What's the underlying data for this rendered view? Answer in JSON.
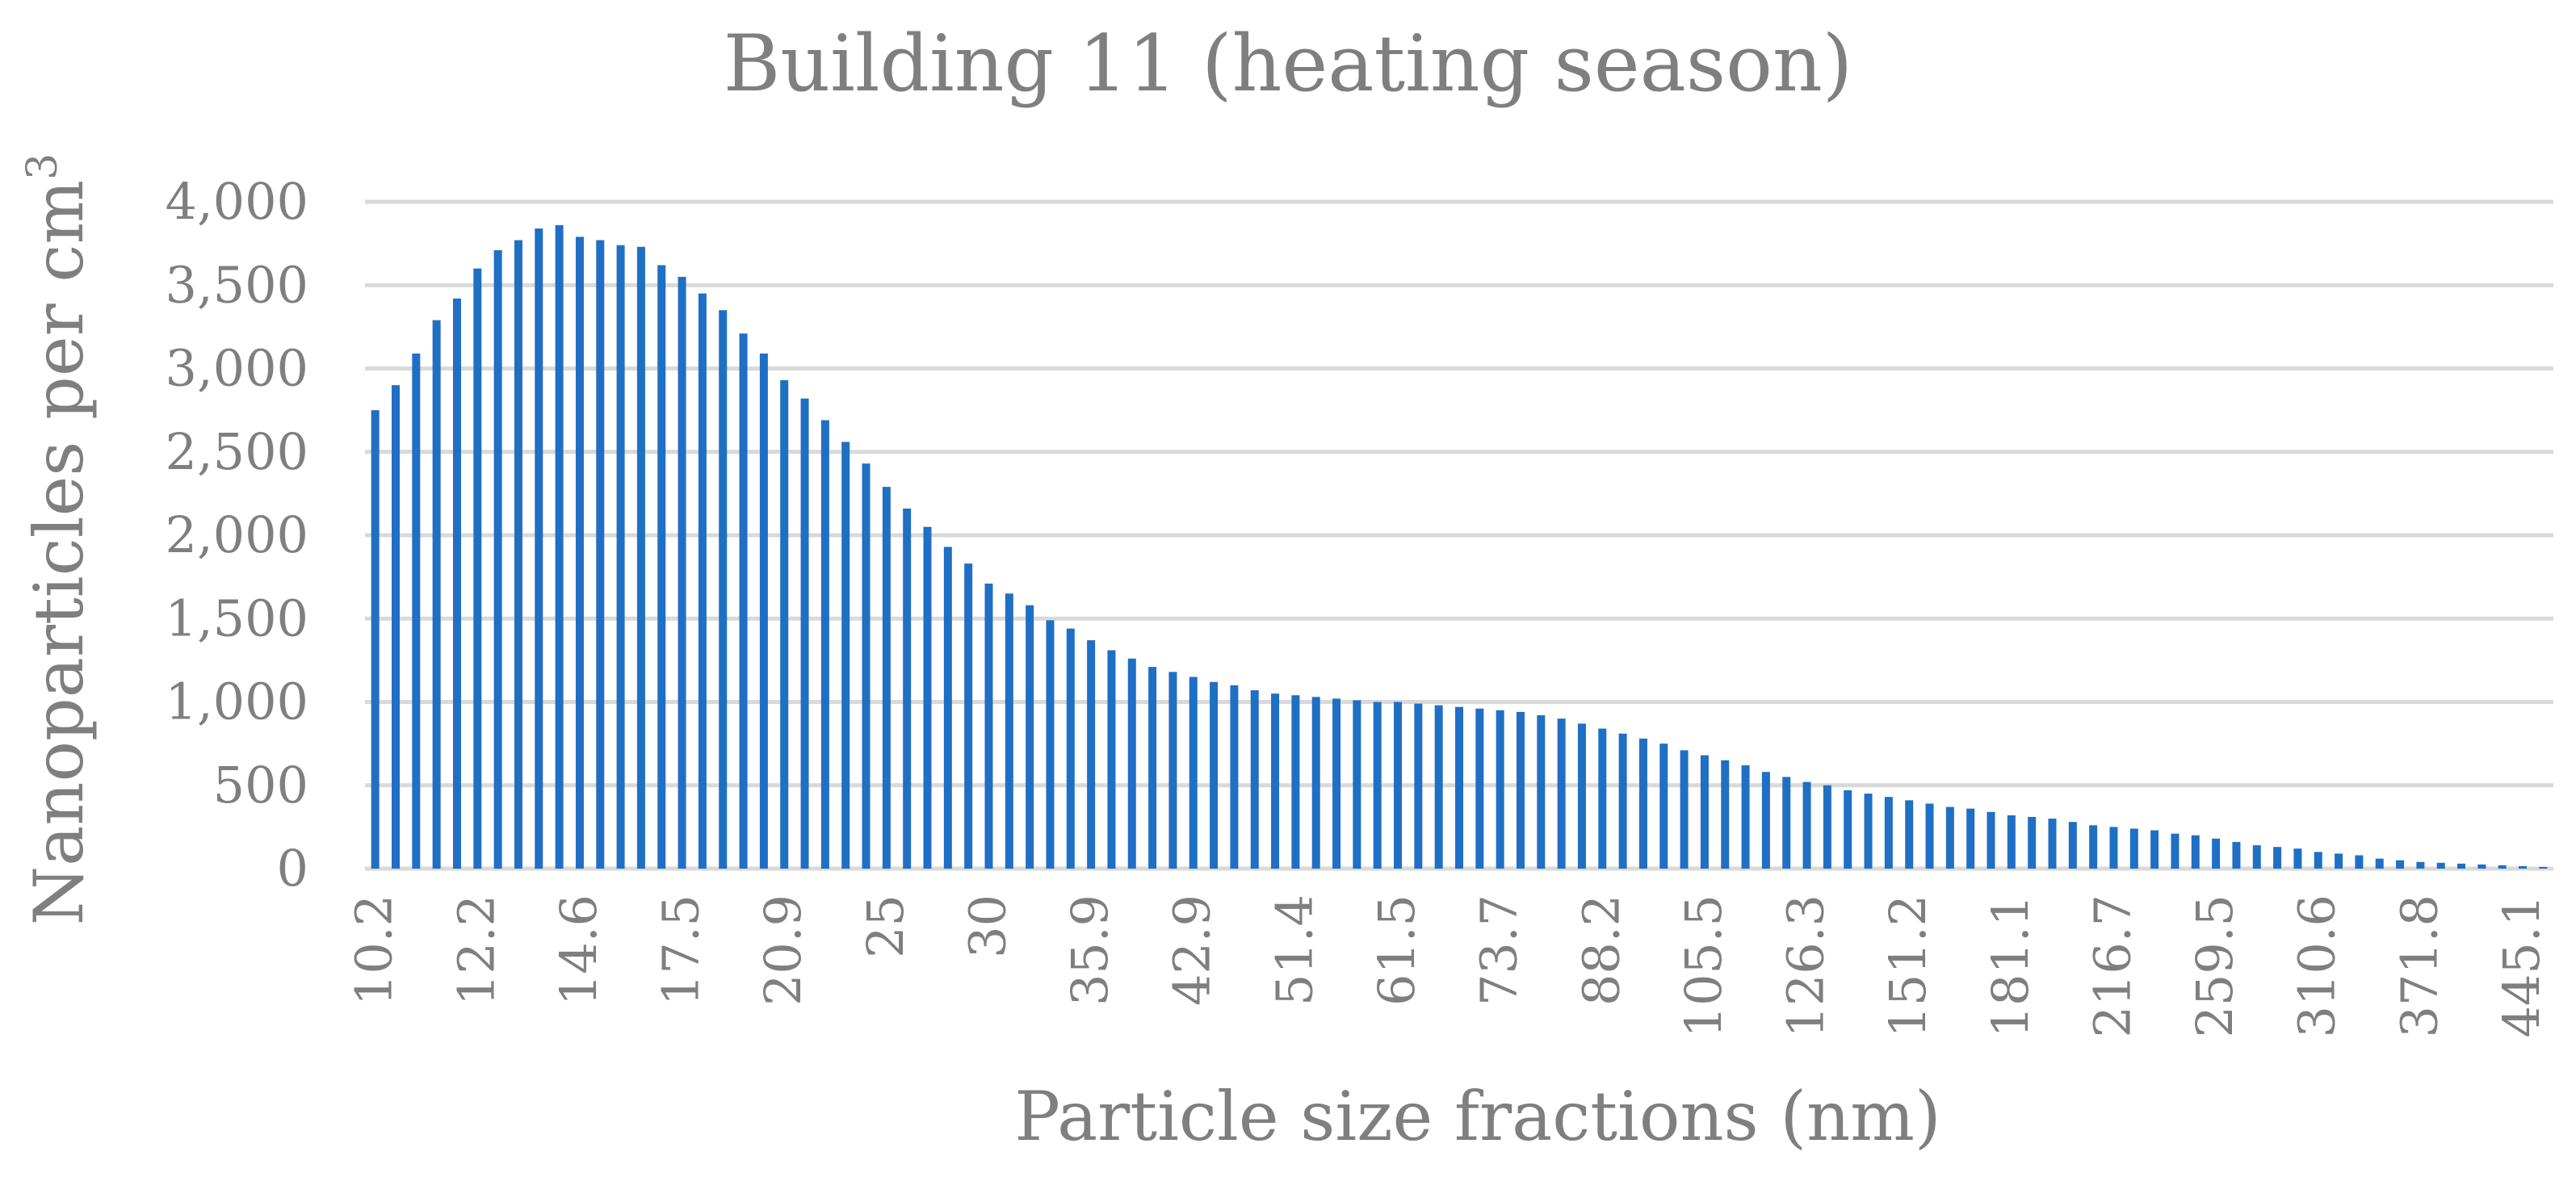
{
  "chart_data": {
    "type": "bar",
    "title": "Building 11 (heating season)",
    "xlabel": "Particle size fractions (nm)",
    "ylabel": "Nanoparticles per cm",
    "ylabel_superscript": "3",
    "ylim": [
      0,
      4000
    ],
    "y_ticks": [
      0,
      500,
      1000,
      1500,
      2000,
      2500,
      3000,
      3500,
      4000
    ],
    "y_tick_labels": [
      "0",
      "500",
      "1,000",
      "1,500",
      "2,000",
      "2,500",
      "3,000",
      "3,500",
      "4,000"
    ],
    "x_tick_labels": [
      {
        "index": 0,
        "label": "10.2"
      },
      {
        "index": 5,
        "label": "12.2"
      },
      {
        "index": 10,
        "label": "14.6"
      },
      {
        "index": 15,
        "label": "17.5"
      },
      {
        "index": 20,
        "label": "20.9"
      },
      {
        "index": 25,
        "label": "25"
      },
      {
        "index": 30,
        "label": "30"
      },
      {
        "index": 35,
        "label": "35.9"
      },
      {
        "index": 40,
        "label": "42.9"
      },
      {
        "index": 45,
        "label": "51.4"
      },
      {
        "index": 50,
        "label": "61.5"
      },
      {
        "index": 55,
        "label": "73.7"
      },
      {
        "index": 60,
        "label": "88.2"
      },
      {
        "index": 65,
        "label": "105.5"
      },
      {
        "index": 70,
        "label": "126.3"
      },
      {
        "index": 75,
        "label": "151.2"
      },
      {
        "index": 80,
        "label": "181.1"
      },
      {
        "index": 85,
        "label": "216.7"
      },
      {
        "index": 90,
        "label": "259.5"
      },
      {
        "index": 95,
        "label": "310.6"
      },
      {
        "index": 100,
        "label": "371.8"
      },
      {
        "index": 105,
        "label": "445.1"
      }
    ],
    "values": [
      2750,
      2900,
      3090,
      3290,
      3420,
      3600,
      3710,
      3770,
      3840,
      3860,
      3790,
      3770,
      3740,
      3730,
      3620,
      3550,
      3450,
      3350,
      3210,
      3090,
      2930,
      2820,
      2690,
      2560,
      2430,
      2290,
      2160,
      2050,
      1930,
      1830,
      1710,
      1650,
      1580,
      1490,
      1440,
      1370,
      1310,
      1260,
      1210,
      1180,
      1150,
      1120,
      1100,
      1070,
      1050,
      1040,
      1030,
      1020,
      1010,
      1000,
      1000,
      990,
      980,
      970,
      960,
      950,
      940,
      920,
      900,
      870,
      840,
      810,
      780,
      750,
      710,
      680,
      650,
      620,
      580,
      550,
      520,
      500,
      470,
      450,
      430,
      410,
      390,
      370,
      360,
      340,
      320,
      310,
      300,
      280,
      260,
      250,
      240,
      230,
      210,
      200,
      180,
      160,
      140,
      130,
      120,
      100,
      90,
      80,
      60,
      50,
      40,
      35,
      30,
      25,
      20,
      15,
      10
    ],
    "series_color": "#1f6fc5",
    "grid": true
  }
}
